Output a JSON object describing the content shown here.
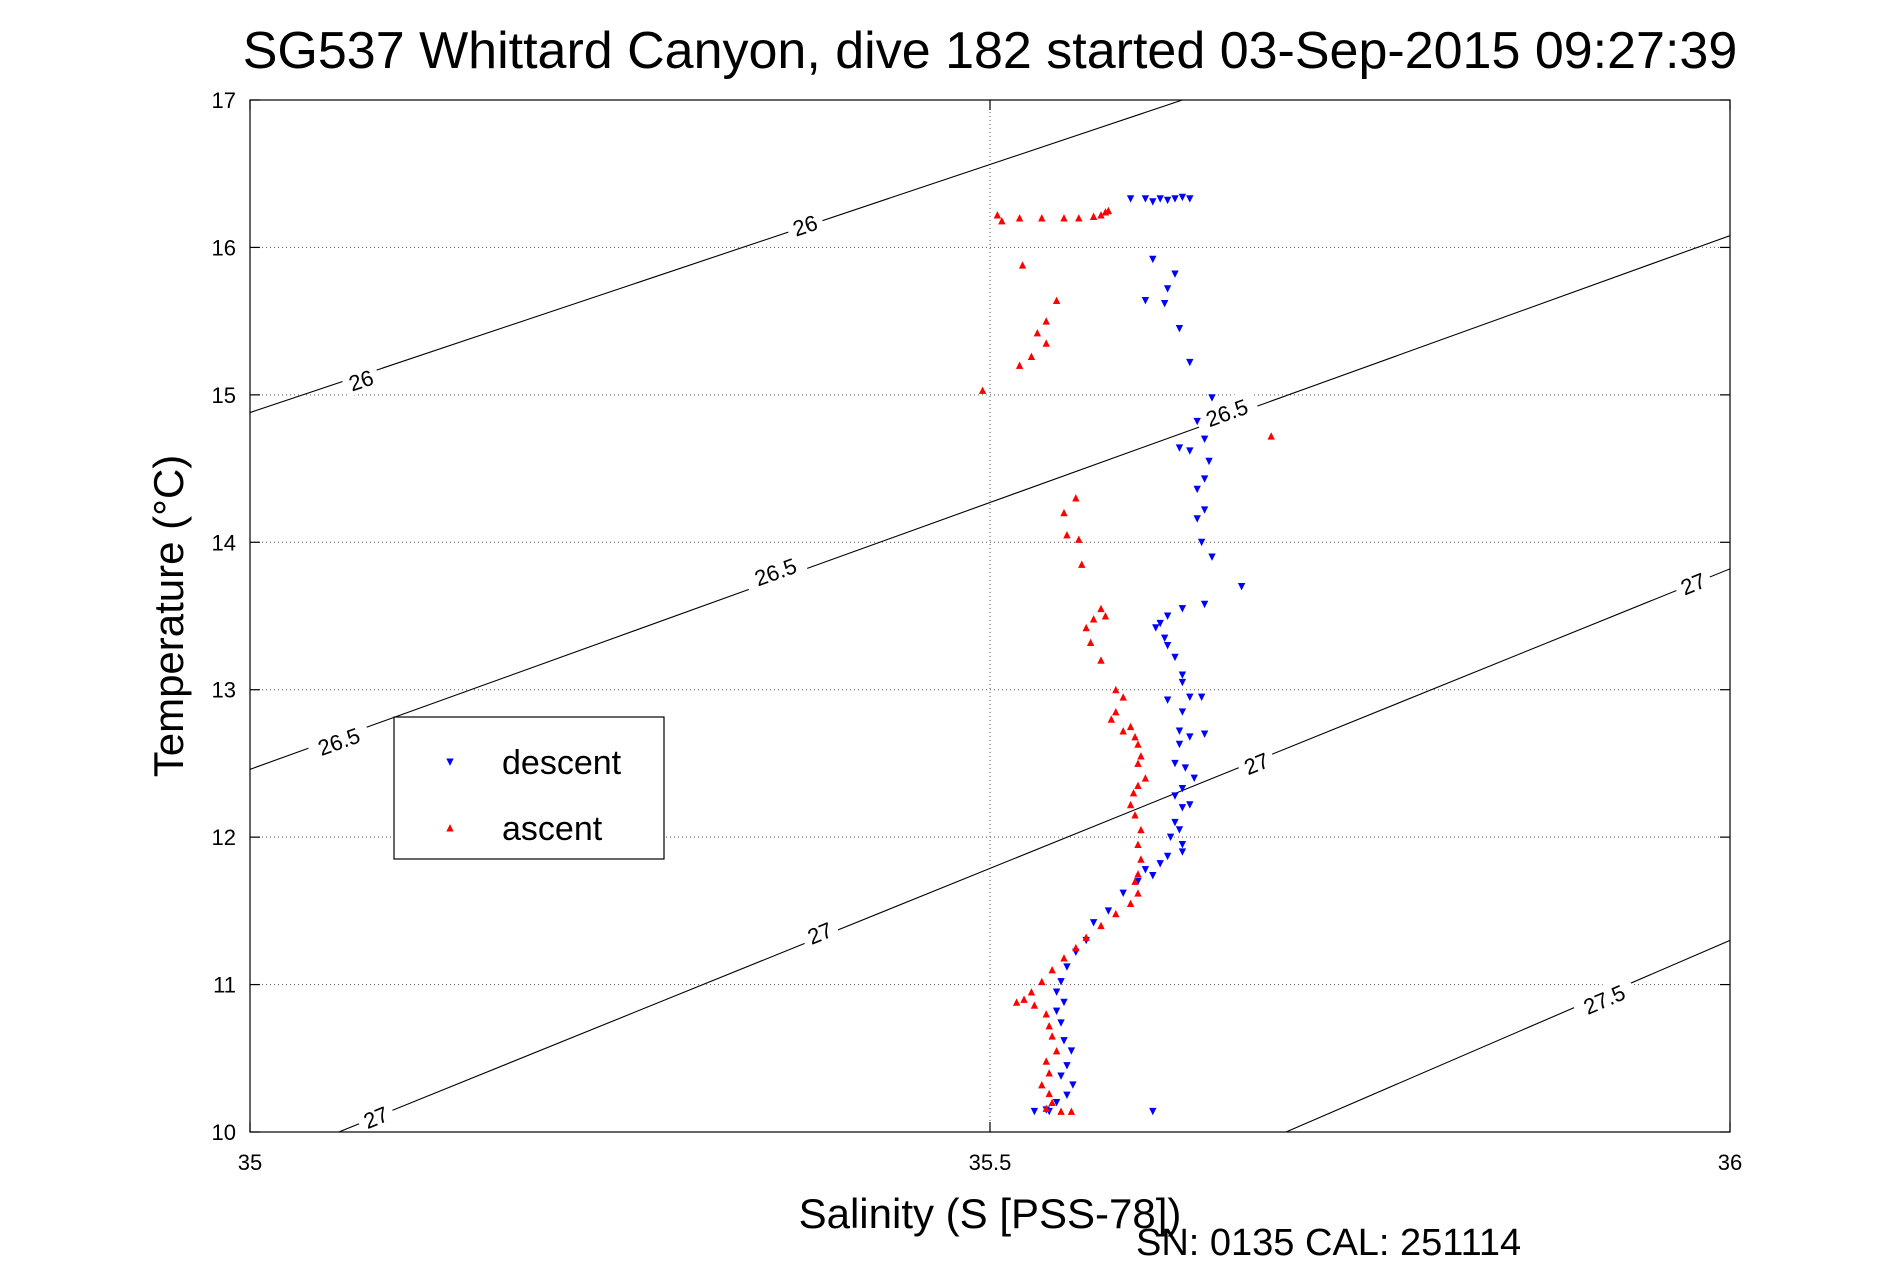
{
  "chart_data": {
    "type": "scatter",
    "title": "SG537 Whittard Canyon, dive 182 started 03-Sep-2015 09:27:39",
    "xlabel": "Salinity (S [PSS-78])",
    "ylabel": "Temperature (°C)",
    "xlim": [
      35,
      36
    ],
    "ylim": [
      10,
      17
    ],
    "x_ticks": [
      35,
      35.5,
      36
    ],
    "x_tick_labels": [
      "35",
      "35.5",
      "36"
    ],
    "y_ticks": [
      10,
      11,
      12,
      13,
      14,
      15,
      16,
      17
    ],
    "y_tick_labels": [
      "10",
      "11",
      "12",
      "13",
      "14",
      "15",
      "16",
      "17"
    ],
    "grid": "dotted",
    "legend": {
      "location": "left",
      "entries": [
        {
          "label": "descent",
          "color": "#0000ff",
          "marker": "triangle-down"
        },
        {
          "label": "ascent",
          "color": "#ff0000",
          "marker": "triangle-up"
        }
      ]
    },
    "footer": "SN: 0135  CAL: 251114",
    "density_contours": [
      {
        "label": "26",
        "line": [
          [
            35.0,
            14.88
          ],
          [
            35.63,
            17.0
          ]
        ],
        "label_positions": [
          [
            35.075,
            15.1
          ],
          [
            35.375,
            16.15
          ]
        ]
      },
      {
        "label": "26.5",
        "line": [
          [
            35.0,
            12.46
          ],
          [
            36.0,
            16.08
          ]
        ],
        "label_positions": [
          [
            35.06,
            12.65
          ],
          [
            35.355,
            13.8
          ],
          [
            35.66,
            14.88
          ]
        ]
      },
      {
        "label": "27",
        "line": [
          [
            35.06,
            10.0
          ],
          [
            36.0,
            13.82
          ]
        ],
        "label_positions": [
          [
            35.085,
            10.1
          ],
          [
            35.385,
            11.35
          ],
          [
            35.68,
            12.5
          ],
          [
            35.975,
            13.72
          ]
        ]
      },
      {
        "label": "27.5",
        "line": [
          [
            35.7,
            10.0
          ],
          [
            36.0,
            11.3
          ]
        ],
        "label_positions": [
          [
            35.915,
            10.9
          ]
        ]
      }
    ],
    "series": [
      {
        "name": "descent",
        "color": "#0000ff",
        "marker": "triangle-down",
        "points": [
          [
            35.595,
            16.33
          ],
          [
            35.605,
            16.33
          ],
          [
            35.615,
            16.33
          ],
          [
            35.625,
            16.33
          ],
          [
            35.635,
            16.33
          ],
          [
            35.61,
            16.31
          ],
          [
            35.62,
            16.32
          ],
          [
            35.63,
            16.34
          ],
          [
            35.61,
            15.92
          ],
          [
            35.625,
            15.82
          ],
          [
            35.62,
            15.72
          ],
          [
            35.605,
            15.64
          ],
          [
            35.618,
            15.62
          ],
          [
            35.628,
            15.45
          ],
          [
            35.635,
            15.22
          ],
          [
            35.65,
            14.98
          ],
          [
            35.64,
            14.82
          ],
          [
            35.628,
            14.64
          ],
          [
            35.635,
            14.62
          ],
          [
            35.645,
            14.7
          ],
          [
            35.648,
            14.55
          ],
          [
            35.645,
            14.43
          ],
          [
            35.64,
            14.36
          ],
          [
            35.645,
            14.22
          ],
          [
            35.64,
            14.16
          ],
          [
            35.643,
            14.0
          ],
          [
            35.65,
            13.9
          ],
          [
            35.67,
            13.7
          ],
          [
            35.645,
            13.58
          ],
          [
            35.63,
            13.55
          ],
          [
            35.62,
            13.5
          ],
          [
            35.615,
            13.45
          ],
          [
            35.612,
            13.42
          ],
          [
            35.618,
            13.35
          ],
          [
            35.62,
            13.3
          ],
          [
            35.625,
            13.22
          ],
          [
            35.63,
            13.1
          ],
          [
            35.63,
            13.05
          ],
          [
            35.635,
            12.95
          ],
          [
            35.62,
            12.93
          ],
          [
            35.643,
            12.95
          ],
          [
            35.63,
            12.85
          ],
          [
            35.628,
            12.72
          ],
          [
            35.635,
            12.68
          ],
          [
            35.645,
            12.7
          ],
          [
            35.628,
            12.63
          ],
          [
            35.625,
            12.5
          ],
          [
            35.632,
            12.47
          ],
          [
            35.638,
            12.4
          ],
          [
            35.63,
            12.33
          ],
          [
            35.625,
            12.28
          ],
          [
            35.635,
            12.22
          ],
          [
            35.63,
            12.2
          ],
          [
            35.625,
            12.1
          ],
          [
            35.628,
            12.05
          ],
          [
            35.622,
            12.0
          ],
          [
            35.63,
            11.95
          ],
          [
            35.63,
            11.9
          ],
          [
            35.62,
            11.87
          ],
          [
            35.615,
            11.82
          ],
          [
            35.605,
            11.78
          ],
          [
            35.61,
            11.74
          ],
          [
            35.6,
            11.7
          ],
          [
            35.59,
            11.62
          ],
          [
            35.58,
            11.5
          ],
          [
            35.57,
            11.42
          ],
          [
            35.565,
            11.3
          ],
          [
            35.558,
            11.22
          ],
          [
            35.552,
            11.12
          ],
          [
            35.548,
            11.02
          ],
          [
            35.545,
            10.95
          ],
          [
            35.55,
            10.88
          ],
          [
            35.545,
            10.82
          ],
          [
            35.548,
            10.74
          ],
          [
            35.55,
            10.62
          ],
          [
            35.555,
            10.55
          ],
          [
            35.552,
            10.45
          ],
          [
            35.548,
            10.38
          ],
          [
            35.556,
            10.32
          ],
          [
            35.552,
            10.25
          ],
          [
            35.545,
            10.2
          ],
          [
            35.538,
            10.15
          ],
          [
            35.53,
            10.14
          ],
          [
            35.54,
            10.14
          ],
          [
            35.61,
            10.14
          ]
        ]
      },
      {
        "name": "ascent",
        "color": "#ff0000",
        "marker": "triangle-up",
        "points": [
          [
            35.505,
            16.22
          ],
          [
            35.508,
            16.18
          ],
          [
            35.52,
            16.2
          ],
          [
            35.535,
            16.2
          ],
          [
            35.55,
            16.2
          ],
          [
            35.56,
            16.2
          ],
          [
            35.57,
            16.21
          ],
          [
            35.575,
            16.22
          ],
          [
            35.578,
            16.24
          ],
          [
            35.58,
            16.25
          ],
          [
            35.522,
            15.88
          ],
          [
            35.545,
            15.64
          ],
          [
            35.538,
            15.5
          ],
          [
            35.532,
            15.42
          ],
          [
            35.538,
            15.35
          ],
          [
            35.528,
            15.26
          ],
          [
            35.52,
            15.2
          ],
          [
            35.495,
            15.03
          ],
          [
            35.69,
            14.72
          ],
          [
            35.558,
            14.3
          ],
          [
            35.55,
            14.2
          ],
          [
            35.552,
            14.05
          ],
          [
            35.56,
            14.02
          ],
          [
            35.562,
            13.85
          ],
          [
            35.575,
            13.55
          ],
          [
            35.57,
            13.48
          ],
          [
            35.578,
            13.5
          ],
          [
            35.565,
            13.42
          ],
          [
            35.568,
            13.32
          ],
          [
            35.575,
            13.2
          ],
          [
            35.585,
            13.0
          ],
          [
            35.59,
            12.95
          ],
          [
            35.585,
            12.85
          ],
          [
            35.582,
            12.8
          ],
          [
            35.595,
            12.75
          ],
          [
            35.59,
            12.72
          ],
          [
            35.598,
            12.68
          ],
          [
            35.6,
            12.63
          ],
          [
            35.602,
            12.55
          ],
          [
            35.6,
            12.5
          ],
          [
            35.605,
            12.4
          ],
          [
            35.6,
            12.35
          ],
          [
            35.597,
            12.3
          ],
          [
            35.595,
            12.22
          ],
          [
            35.598,
            12.15
          ],
          [
            35.602,
            12.05
          ],
          [
            35.6,
            11.95
          ],
          [
            35.602,
            11.85
          ],
          [
            35.6,
            11.75
          ],
          [
            35.598,
            11.7
          ],
          [
            35.6,
            11.62
          ],
          [
            35.595,
            11.55
          ],
          [
            35.585,
            11.48
          ],
          [
            35.575,
            11.4
          ],
          [
            35.565,
            11.32
          ],
          [
            35.558,
            11.25
          ],
          [
            35.55,
            11.18
          ],
          [
            35.542,
            11.1
          ],
          [
            35.535,
            11.02
          ],
          [
            35.528,
            10.95
          ],
          [
            35.523,
            10.9
          ],
          [
            35.518,
            10.88
          ],
          [
            35.53,
            10.86
          ],
          [
            35.538,
            10.8
          ],
          [
            35.54,
            10.72
          ],
          [
            35.542,
            10.65
          ],
          [
            35.545,
            10.55
          ],
          [
            35.538,
            10.48
          ],
          [
            35.54,
            10.4
          ],
          [
            35.535,
            10.32
          ],
          [
            35.54,
            10.26
          ],
          [
            35.542,
            10.2
          ],
          [
            35.538,
            10.16
          ],
          [
            35.548,
            10.14
          ],
          [
            35.555,
            10.14
          ]
        ]
      }
    ]
  }
}
